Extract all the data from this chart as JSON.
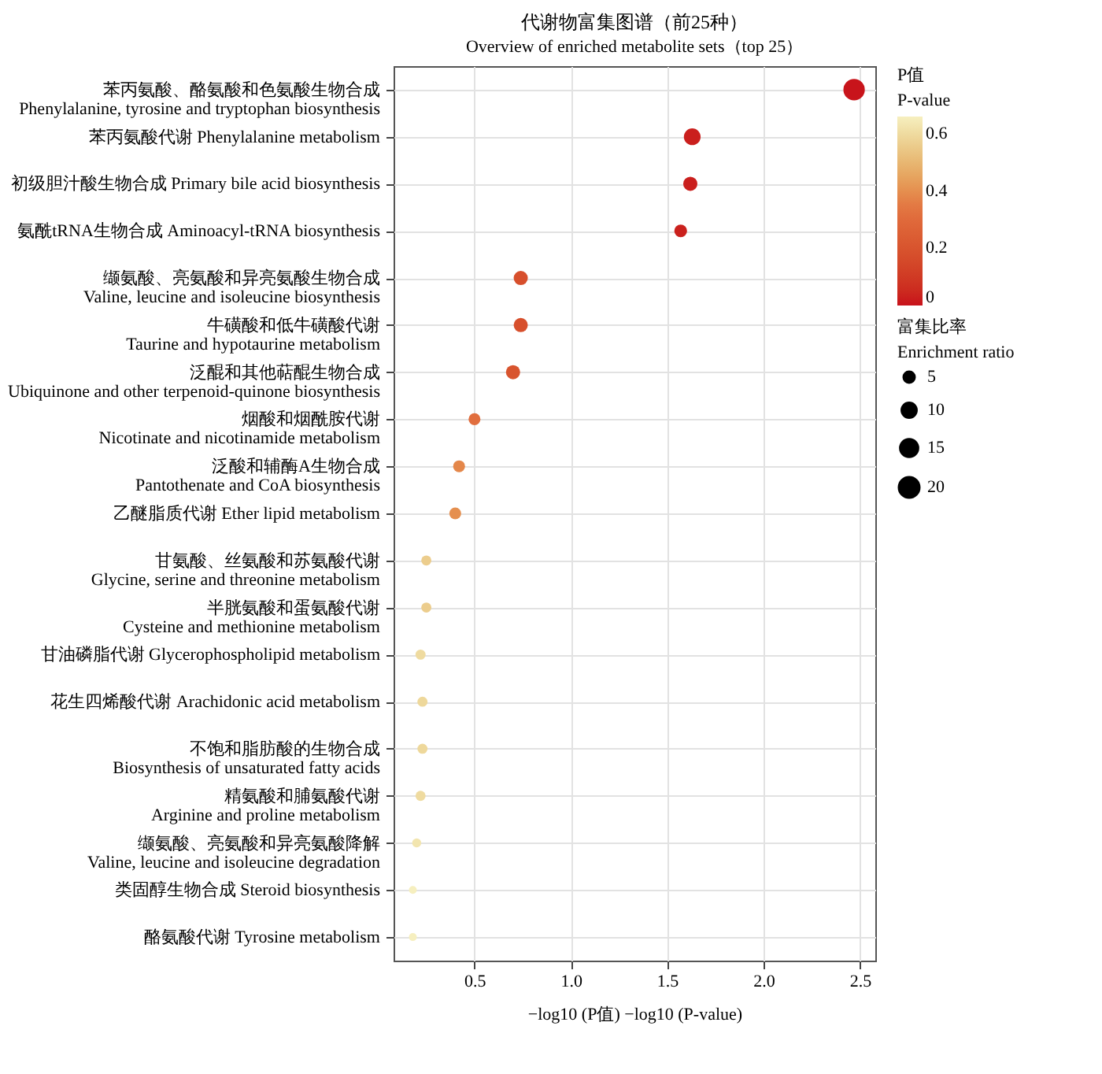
{
  "chart_data": {
    "type": "bubble",
    "title": "代谢物富集图谱（前25种）",
    "subtitle": "Overview of enriched metabolite sets（top 25）",
    "xlabel": "−log10 (P值) −log10 (P-value)",
    "legend_title": "富集比率\nEnrichment ratio",
    "clabel": "P值\nP-value",
    "orientation": "horizontal",
    "categories": [
      "苯丙氨酸、酪氨酸和色氨酸生物合成\nPhenylalanine, tyrosine and tryptophan biosynthesis",
      "苯丙氨酸代谢 Phenylalanine metabolism",
      "初级胆汁酸生物合成 Primary bile acid biosynthesis",
      "氨酰tRNA生物合成 Aminoacyl-tRNA biosynthesis",
      "缬氨酸、亮氨酸和异亮氨酸生物合成\nValine, leucine and isoleucine biosynthesis",
      "牛磺酸和低牛磺酸代谢\nTaurine and hypotaurine metabolism",
      "泛醌和其他萜醌生物合成\nUbiquinone and other terpenoid-quinone biosynthesis",
      "烟酸和烟酰胺代谢\nNicotinate and nicotinamide metabolism",
      "泛酸和辅酶A生物合成\nPantothenate and CoA biosynthesis",
      "乙醚脂质代谢 Ether lipid metabolism",
      "甘氨酸、丝氨酸和苏氨酸代谢\nGlycine, serine and threonine metabolism",
      "半胱氨酸和蛋氨酸代谢\nCysteine and methionine metabolism",
      "甘油磷脂代谢 Glycerophospholipid metabolism",
      "花生四烯酸代谢 Arachidonic acid metabolism",
      "不饱和脂肪酸的生物合成\nBiosynthesis of unsaturated fatty acids",
      "精氨酸和脯氨酸代谢\nArginine and proline metabolism",
      "缬氨酸、亮氨酸和异亮氨酸降解\nValine, leucine and isoleucine degradation",
      "类固醇生物合成 Steroid biosynthesis",
      "酪氨酸代谢 Tyrosine metabolism"
    ],
    "values": [
      2.47,
      1.63,
      1.62,
      1.57,
      0.74,
      0.74,
      0.7,
      0.5,
      0.42,
      0.4,
      0.25,
      0.25,
      0.22,
      0.23,
      0.23,
      0.22,
      0.2,
      0.18,
      0.18
    ],
    "sizes": [
      22,
      13,
      9,
      7,
      9,
      9,
      9,
      6,
      6,
      6,
      4,
      4,
      4,
      4,
      4,
      4,
      3,
      2,
      2
    ],
    "size_legend": [
      5,
      10,
      15,
      20
    ],
    "cvalues": [
      0.003,
      0.023,
      0.024,
      0.027,
      0.18,
      0.18,
      0.2,
      0.32,
      0.38,
      0.4,
      0.56,
      0.56,
      0.6,
      0.59,
      0.59,
      0.6,
      0.63,
      0.66,
      0.66
    ],
    "clim": [
      0,
      0.66
    ],
    "cticks": [
      0,
      0.2,
      0.4,
      0.6
    ],
    "xlim": [
      0.08,
      2.58
    ],
    "xticks": [
      0.5,
      {
        "value": 1,
        "label": "1.0"
      },
      1.5,
      {
        "value": 2,
        "label": "2.0"
      },
      2.5
    ],
    "grid": true
  }
}
